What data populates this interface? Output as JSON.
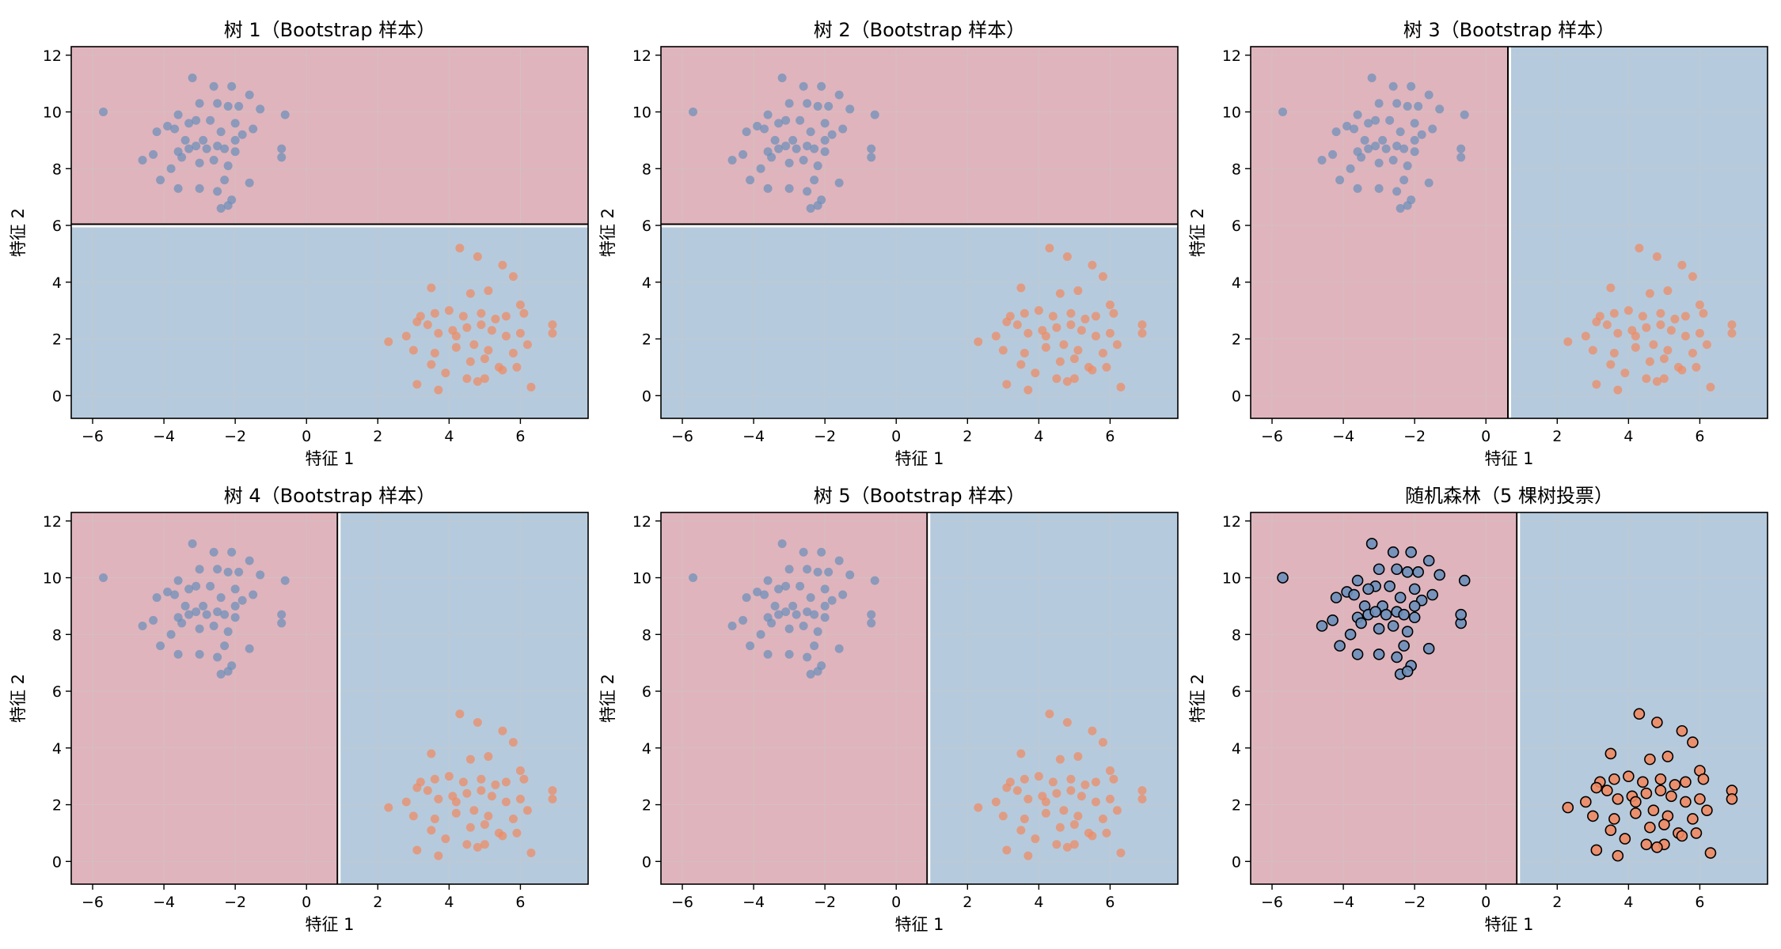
{
  "colors": {
    "region_red": "#e0b4bc",
    "region_blue": "#b6cadd",
    "point_blue": "#6b8fba",
    "point_orange": "#ef8a62",
    "grid": "#c8c8c8",
    "boundary": "#ffffff"
  },
  "x_ticks": [
    -6,
    -4,
    -2,
    0,
    2,
    4,
    6
  ],
  "y_ticks": [
    0,
    2,
    4,
    6,
    8,
    10,
    12
  ],
  "chart_data": [
    {
      "type": "scatter",
      "title": "树 1（Bootstrap 样本）",
      "xlabel": "特征 1",
      "ylabel": "特征 2",
      "xlim": [
        -6.6,
        7.9
      ],
      "ylim": [
        -0.8,
        12.3
      ],
      "grid": true,
      "split": {
        "feature": "y",
        "threshold": 6.0,
        "left_class": "blue",
        "right_class": "red"
      },
      "highlight": false
    },
    {
      "type": "scatter",
      "title": "树 2（Bootstrap 样本）",
      "xlabel": "特征 1",
      "ylabel": "特征 2",
      "xlim": [
        -6.6,
        7.9
      ],
      "ylim": [
        -0.8,
        12.3
      ],
      "grid": true,
      "split": {
        "feature": "y",
        "threshold": 6.0,
        "left_class": "blue",
        "right_class": "red"
      },
      "highlight": false
    },
    {
      "type": "scatter",
      "title": "树 3（Bootstrap 样本）",
      "xlabel": "特征 1",
      "ylabel": "特征 2",
      "xlim": [
        -6.6,
        7.9
      ],
      "ylim": [
        -0.8,
        12.3
      ],
      "grid": true,
      "split": {
        "feature": "x",
        "threshold": 0.65,
        "left_class": "red",
        "right_class": "blue"
      },
      "highlight": false
    },
    {
      "type": "scatter",
      "title": "树 4（Bootstrap 样本）",
      "xlabel": "特征 1",
      "ylabel": "特征 2",
      "xlim": [
        -6.6,
        7.9
      ],
      "ylim": [
        -0.8,
        12.3
      ],
      "grid": true,
      "split": {
        "feature": "x",
        "threshold": 0.9,
        "left_class": "red",
        "right_class": "blue"
      },
      "highlight": false
    },
    {
      "type": "scatter",
      "title": "树 5（Bootstrap 样本）",
      "xlabel": "特征 1",
      "ylabel": "特征 2",
      "xlim": [
        -6.6,
        7.9
      ],
      "ylim": [
        -0.8,
        12.3
      ],
      "grid": true,
      "split": {
        "feature": "x",
        "threshold": 0.9,
        "left_class": "red",
        "right_class": "blue"
      },
      "highlight": false
    },
    {
      "type": "scatter",
      "title": "随机森林（5 棵树投票）",
      "xlabel": "特征 1",
      "ylabel": "特征 2",
      "xlim": [
        -6.6,
        7.9
      ],
      "ylim": [
        -0.8,
        12.3
      ],
      "grid": true,
      "split": {
        "feature": "x",
        "threshold": 0.9,
        "left_class": "red",
        "right_class": "blue"
      },
      "highlight": true
    }
  ],
  "points": {
    "blue": [
      [
        -5.7,
        10.0
      ],
      [
        -3.2,
        11.2
      ],
      [
        -2.6,
        10.9
      ],
      [
        -2.1,
        10.9
      ],
      [
        -1.6,
        10.6
      ],
      [
        -3.0,
        10.3
      ],
      [
        -2.5,
        10.3
      ],
      [
        -2.2,
        10.2
      ],
      [
        -1.9,
        10.2
      ],
      [
        -1.3,
        10.1
      ],
      [
        -0.6,
        9.9
      ],
      [
        -3.6,
        9.9
      ],
      [
        -3.1,
        9.7
      ],
      [
        -2.7,
        9.7
      ],
      [
        -3.3,
        9.6
      ],
      [
        -2.0,
        9.6
      ],
      [
        -3.9,
        9.5
      ],
      [
        -3.7,
        9.4
      ],
      [
        -4.2,
        9.3
      ],
      [
        -2.4,
        9.3
      ],
      [
        -1.8,
        9.2
      ],
      [
        -1.5,
        9.4
      ],
      [
        -3.4,
        9.0
      ],
      [
        -2.9,
        9.0
      ],
      [
        -2.0,
        9.0
      ],
      [
        -4.6,
        8.3
      ],
      [
        -4.3,
        8.5
      ],
      [
        -3.6,
        8.6
      ],
      [
        -3.3,
        8.7
      ],
      [
        -3.1,
        8.8
      ],
      [
        -2.8,
        8.7
      ],
      [
        -2.5,
        8.8
      ],
      [
        -2.3,
        8.7
      ],
      [
        -2.0,
        8.6
      ],
      [
        -3.5,
        8.4
      ],
      [
        -3.0,
        8.2
      ],
      [
        -2.6,
        8.3
      ],
      [
        -2.2,
        8.1
      ],
      [
        -0.7,
        8.4
      ],
      [
        -0.7,
        8.7
      ],
      [
        -3.8,
        8.0
      ],
      [
        -4.1,
        7.6
      ],
      [
        -3.6,
        7.3
      ],
      [
        -3.0,
        7.3
      ],
      [
        -2.5,
        7.2
      ],
      [
        -1.6,
        7.5
      ],
      [
        -2.1,
        6.9
      ],
      [
        -2.4,
        6.6
      ],
      [
        -2.2,
        6.7
      ],
      [
        -2.3,
        7.6
      ]
    ],
    "orange": [
      [
        4.3,
        5.2
      ],
      [
        4.8,
        4.9
      ],
      [
        5.5,
        4.6
      ],
      [
        5.8,
        4.2
      ],
      [
        3.5,
        3.8
      ],
      [
        4.6,
        3.6
      ],
      [
        5.1,
        3.7
      ],
      [
        6.0,
        3.2
      ],
      [
        3.2,
        2.8
      ],
      [
        3.6,
        2.9
      ],
      [
        4.0,
        3.0
      ],
      [
        4.4,
        2.8
      ],
      [
        4.9,
        2.9
      ],
      [
        5.3,
        2.7
      ],
      [
        6.1,
        2.9
      ],
      [
        6.9,
        2.5
      ],
      [
        2.3,
        1.9
      ],
      [
        2.8,
        2.1
      ],
      [
        3.1,
        2.6
      ],
      [
        3.4,
        2.5
      ],
      [
        3.7,
        2.2
      ],
      [
        4.1,
        2.3
      ],
      [
        4.5,
        2.4
      ],
      [
        4.9,
        2.5
      ],
      [
        5.2,
        2.3
      ],
      [
        5.6,
        2.1
      ],
      [
        6.0,
        2.2
      ],
      [
        6.9,
        2.2
      ],
      [
        3.0,
        1.6
      ],
      [
        3.6,
        1.5
      ],
      [
        4.2,
        1.7
      ],
      [
        4.7,
        1.8
      ],
      [
        5.1,
        1.6
      ],
      [
        5.8,
        1.5
      ],
      [
        6.2,
        1.8
      ],
      [
        3.5,
        1.1
      ],
      [
        3.9,
        0.8
      ],
      [
        4.6,
        1.2
      ],
      [
        5.0,
        1.3
      ],
      [
        5.4,
        1.0
      ],
      [
        5.9,
        1.0
      ],
      [
        4.5,
        0.6
      ],
      [
        5.0,
        0.6
      ],
      [
        5.5,
        0.9
      ],
      [
        6.3,
        0.3
      ],
      [
        3.1,
        0.4
      ],
      [
        3.7,
        0.2
      ],
      [
        4.8,
        0.5
      ],
      [
        4.2,
        2.1
      ],
      [
        5.6,
        2.8
      ]
    ]
  }
}
